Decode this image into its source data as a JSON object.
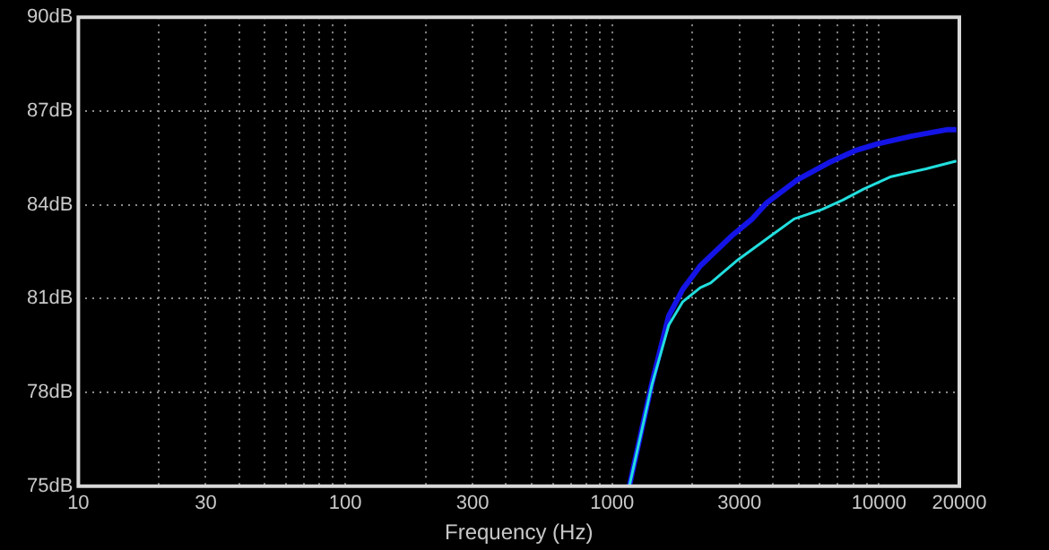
{
  "chart_data": {
    "type": "line",
    "xlabel": "Frequency (Hz)",
    "xlim": [
      10,
      20000
    ],
    "ylim": [
      75,
      90
    ],
    "log": "x",
    "grid": true,
    "legend": false,
    "marker": "none",
    "line_style": "solid",
    "xticks": [
      10,
      {
        "value": 20,
        "label": null
      },
      30,
      {
        "value": 40,
        "label": null
      },
      {
        "value": 50,
        "label": null
      },
      {
        "value": 60,
        "label": null
      },
      {
        "value": 70,
        "label": null
      },
      {
        "value": 80,
        "label": null
      },
      {
        "value": 90,
        "label": null
      },
      100,
      {
        "value": 200,
        "label": null
      },
      300,
      {
        "value": 400,
        "label": null
      },
      {
        "value": 500,
        "label": null
      },
      {
        "value": 600,
        "label": null
      },
      {
        "value": 700,
        "label": null
      },
      {
        "value": 800,
        "label": null
      },
      {
        "value": 900,
        "label": null
      },
      1000,
      {
        "value": 2000,
        "label": null
      },
      3000,
      {
        "value": 4000,
        "label": null
      },
      {
        "value": 5000,
        "label": null
      },
      {
        "value": 6000,
        "label": null
      },
      {
        "value": 7000,
        "label": null
      },
      {
        "value": 8000,
        "label": null
      },
      {
        "value": 9000,
        "label": null
      },
      10000,
      20000
    ],
    "yticks": [
      {
        "value": 75,
        "label": "75dB"
      },
      {
        "value": 78,
        "label": "78dB"
      },
      {
        "value": 81,
        "label": "81dB"
      },
      {
        "value": 84,
        "label": "84dB"
      },
      {
        "value": 87,
        "label": "87dB"
      },
      {
        "value": 90,
        "label": "90dB"
      }
    ],
    "series": [
      {
        "color": "#1414e6",
        "x": [
          1160,
          1410,
          1630,
          1840,
          2140,
          2800,
          3350,
          3780,
          4950,
          6490,
          8240,
          9860,
          13300,
          17900,
          19500
        ],
        "values": [
          75,
          78.3,
          80.45,
          81.3,
          82.05,
          83,
          83.55,
          84.05,
          84.8,
          85.35,
          85.75,
          85.95,
          86.2,
          86.4,
          86.4
        ]
      },
      {
        "color": "#22dede",
        "x": [
          1160,
          1410,
          1630,
          1840,
          2140,
          2340,
          2970,
          3780,
          4810,
          6110,
          7310,
          8750,
          11100,
          15000,
          19500
        ],
        "values": [
          75,
          78.25,
          80.15,
          80.9,
          81.35,
          81.5,
          82.25,
          82.9,
          83.55,
          83.85,
          84.15,
          84.5,
          84.9,
          85.15,
          85.4
        ]
      }
    ]
  }
}
